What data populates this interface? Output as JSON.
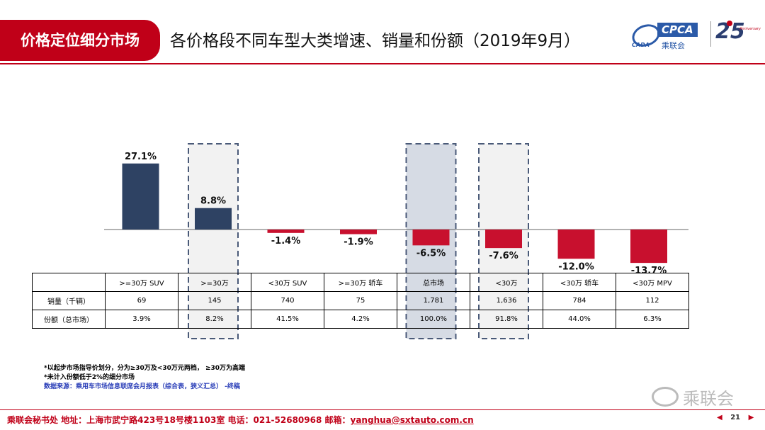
{
  "header": {
    "section": "价格定位细分市场",
    "title": "各价格段不同车型大类增速、销量和份额（2019年9月）"
  },
  "logos": {
    "cpca_tag": "CPCA",
    "cpca_sub1": "CADA",
    "cpca_sub2": "乘联会",
    "anniv_num": "25",
    "anniv_text": "Anniversary"
  },
  "colors": {
    "positive": "#2e4263",
    "negative": "#c8102e",
    "accent": "#c00018"
  },
  "chart_data": {
    "type": "bar",
    "categories": [
      ">=30万 SUV",
      ">=30万",
      "<30万 SUV",
      ">=30万 轿车",
      "总市场",
      "<30万",
      "<30万 轿车",
      "<30万 MPV"
    ],
    "values": [
      27.1,
      8.8,
      -1.4,
      -1.9,
      -6.5,
      -7.6,
      -12.0,
      -13.7
    ],
    "data_labels": [
      "27.1%",
      "8.8%",
      "-1.4%",
      "-1.9%",
      "-6.5%",
      "-7.6%",
      "-12.0%",
      "-13.7%"
    ],
    "highlighted": [
      ">=30万",
      "总市场",
      "<30万"
    ],
    "title": "",
    "xlabel": "",
    "ylabel": ""
  },
  "table": {
    "headers": [
      ">=30万 SUV",
      ">=30万",
      "<30万 SUV",
      ">=30万 轿车",
      "总市场",
      "<30万",
      "<30万 轿车",
      "<30万 MPV"
    ],
    "rows": [
      {
        "label": "销量（千辆）",
        "cells": [
          "69",
          "145",
          "740",
          "75",
          "1,781",
          "1,636",
          "784",
          "112"
        ]
      },
      {
        "label": "份额（总市场）",
        "cells": [
          "3.9%",
          "8.2%",
          "41.5%",
          "4.2%",
          "100.0%",
          "91.8%",
          "44.0%",
          "6.3%"
        ]
      }
    ]
  },
  "notes": {
    "line1": "*以起步市场指导价划分，分为≥30万及<30万元两档，  ≥30万为高端",
    "line2": "*未计入份额低于2%的细分市场",
    "source": "数据来源：乘用车市场信息联席会月报表（综合表，狭义汇总）  -终稿"
  },
  "watermark": "乘联会",
  "footer": {
    "text": "乘联会秘书处  地址：上海市武宁路423号18号楼1103室  电话：021-52680968  邮箱：",
    "email": "yanghua@sxtauto.com.cn",
    "page": "21",
    "prev": "◀",
    "next": "▶"
  }
}
